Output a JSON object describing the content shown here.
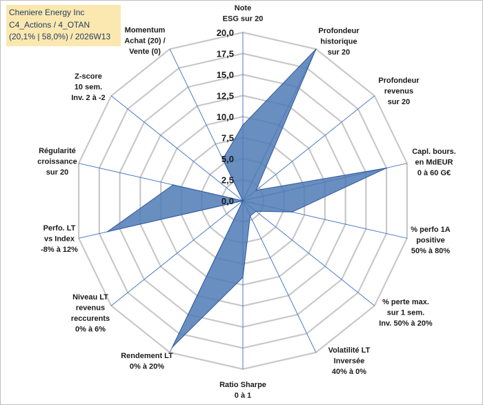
{
  "header": {
    "line1": "Cheniere Energy Inc",
    "line2": "C4_Actions / 4_OTAN",
    "line3": "(20,1% | 58,0%) / 2026W13"
  },
  "chart_data": {
    "type": "radar",
    "title": "Cheniere Energy Inc",
    "rmin": 0,
    "rmax": 20,
    "ticks": [
      "0,0",
      "2,5",
      "5,0",
      "7,5",
      "10,0",
      "12,5",
      "15,0",
      "17,5",
      "20,0"
    ],
    "tick_values": [
      0,
      2.5,
      5,
      7.5,
      10,
      12.5,
      15,
      17.5,
      20
    ],
    "categories": [
      [
        "Note",
        "ESG sur 20"
      ],
      [
        "Profondeur",
        "historique",
        "sur 20"
      ],
      [
        "Profondeur",
        "revenus",
        "sur 20"
      ],
      [
        "Capl. bours.",
        "en MdEUR",
        "0 à 60 G€"
      ],
      [
        "% perfo 1A",
        "positive",
        "50% à 80%"
      ],
      [
        "% perte max.",
        "sur 1 sem.",
        "Inv. 50% à 20%"
      ],
      [
        "Volatilité LT",
        "Inversée",
        "40% à 0%"
      ],
      [
        "Ratio Sharpe",
        "0 à 1"
      ],
      [
        "Rendement LT",
        "0% à 20%"
      ],
      [
        "Niveau LT",
        "revenus",
        "reccurents",
        "0% à 6%"
      ],
      [
        "Perfo. LT",
        "vs Index",
        "-8% à 12%"
      ],
      [
        "Régularité",
        "croissance",
        "sur 20"
      ],
      [
        "Z-score",
        "10 sem.",
        "Inv. 2 à -2"
      ],
      [
        "Momentum",
        "Achat (20) /",
        "Vente (0)"
      ]
    ],
    "series": [
      {
        "name": "Cheniere Energy Inc",
        "values": [
          9,
          20,
          2,
          17.5,
          6,
          2,
          2,
          9.1,
          19.3,
          0,
          16.5,
          8.5,
          0,
          5.5
        ]
      }
    ],
    "colors": {
      "fill": "#4f7ab5",
      "stroke": "#2e57a0",
      "grid": "#c8c8c8",
      "spoke": "#4a78c6"
    }
  }
}
